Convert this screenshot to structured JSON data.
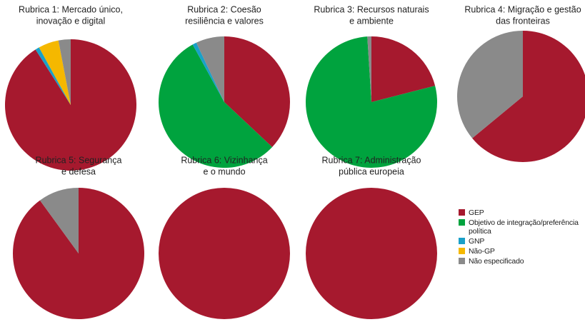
{
  "chart_data": {
    "type": "pie",
    "categories": [
      "GEP",
      "Objetivo de integração/preferência política",
      "GNP",
      "Não-GP",
      "Não especificado"
    ],
    "colors": [
      "#a6192e",
      "#00a33e",
      "#1aa0c8",
      "#f5b800",
      "#8a8a8a"
    ],
    "pies": [
      {
        "title": [
          "Rubrica 1: Mercado único,",
          "inovação e digital"
        ],
        "values": [
          91,
          0,
          1,
          5,
          3
        ]
      },
      {
        "title": [
          "Rubrica 2: Coesão",
          "resiliência e valores"
        ],
        "values": [
          37,
          55,
          1,
          0,
          7
        ]
      },
      {
        "title": [
          "Rubrica 3: Recursos naturais",
          "e ambiente"
        ],
        "values": [
          21,
          78,
          0,
          0,
          1
        ]
      },
      {
        "title": [
          "Rubrica 4: Migração e gestão",
          "das fronteiras"
        ],
        "values": [
          64,
          0,
          0,
          0,
          36
        ]
      },
      {
        "title": [
          "Rubrica 5: Segurança",
          "e defesa"
        ],
        "values": [
          90,
          0,
          0,
          0,
          10
        ]
      },
      {
        "title": [
          "Rubrica 6: Vizinhança",
          "e o mundo"
        ],
        "values": [
          100,
          0,
          0,
          0,
          0
        ]
      },
      {
        "title": [
          "Rubrica 7: Administração",
          "pública europeia"
        ],
        "values": [
          100,
          0,
          0,
          0,
          0
        ]
      }
    ]
  }
}
